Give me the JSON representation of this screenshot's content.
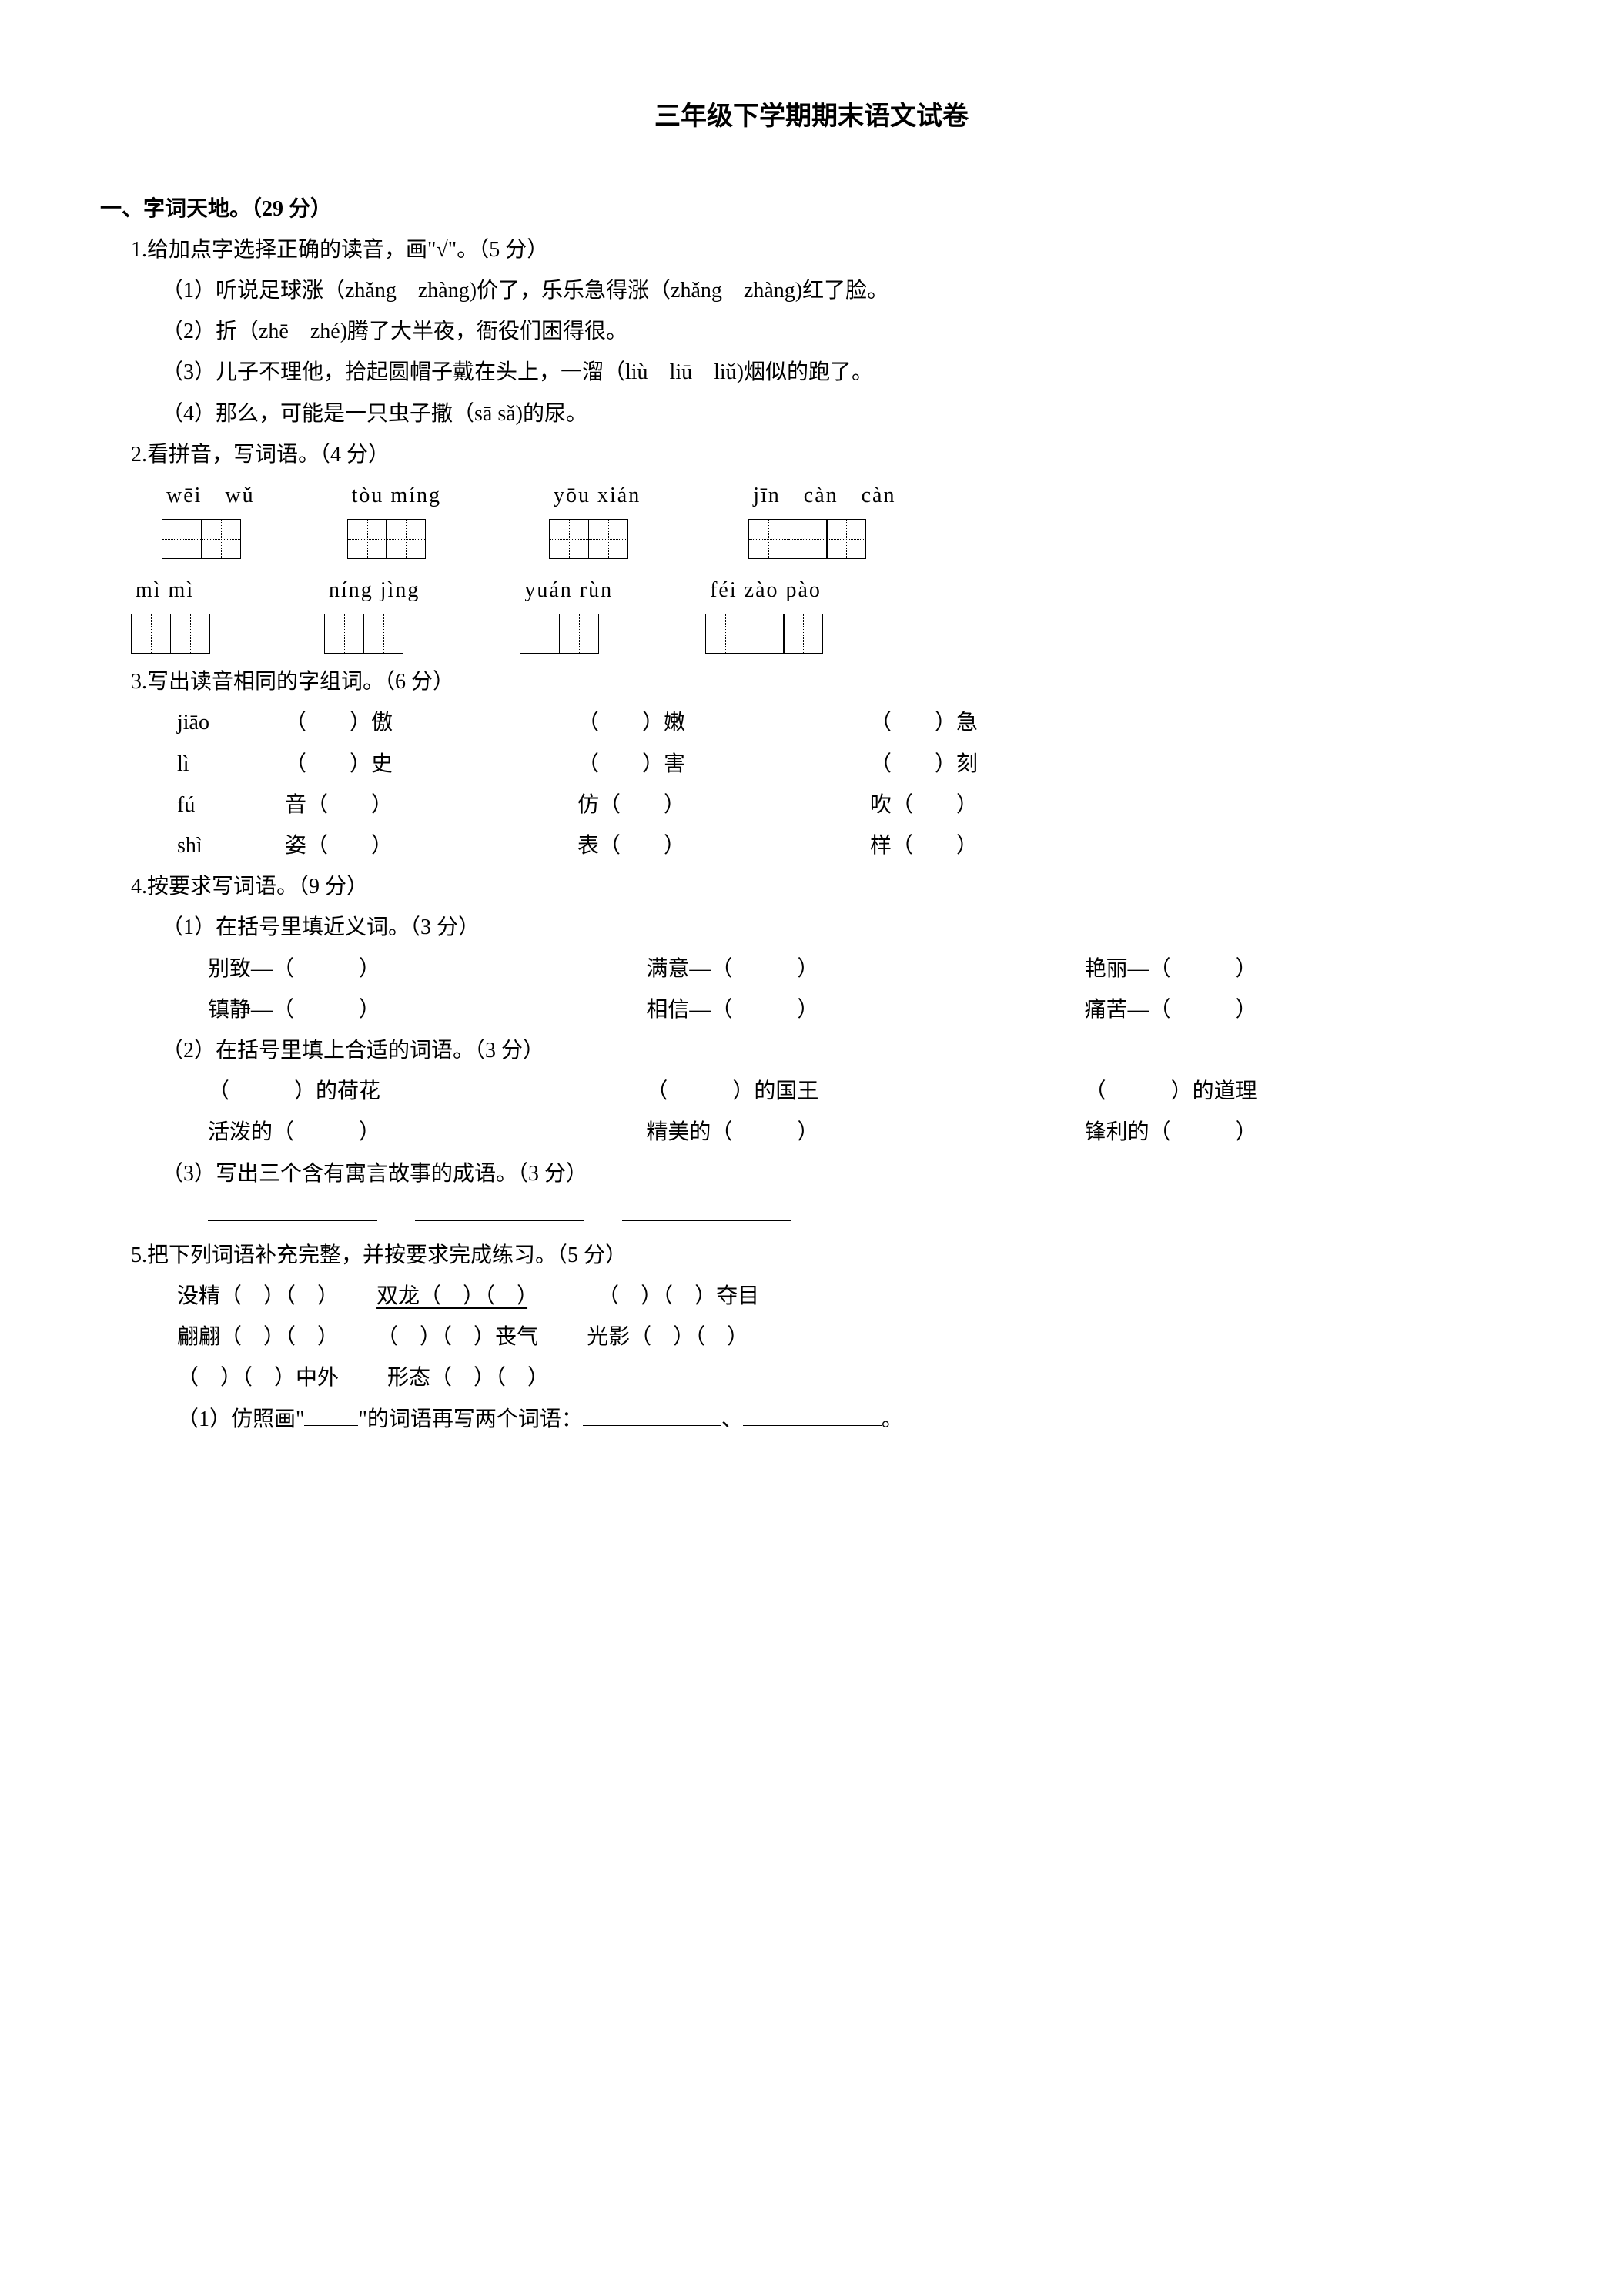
{
  "title": "三年级下学期期末语文试卷",
  "section1": {
    "header": "一、字词天地。（29 分）",
    "q1": {
      "stem": "1.给加点字选择正确的读音，画\"√\"。（5 分）",
      "items": [
        "（1）听说足球涨（zhǎng　zhàng)价了，乐乐急得涨（zhǎng　zhàng)红了脸。",
        "（2）折（zhē　zhé)腾了大半夜，衙役们困得很。",
        "（3）儿子不理他，拾起圆帽子戴在头上，一溜（liù　liū　liǔ)烟似的跑了。",
        "（4）那么，可能是一只虫子撒（sā sǎ)的尿。"
      ]
    },
    "q2": {
      "stem": "2.看拼音，写词语。（4 分）",
      "row1": [
        {
          "pinyin": "wēi　wǔ",
          "cells": 2,
          "gap_after": 120
        },
        {
          "pinyin": "tòu míng",
          "cells": 2,
          "gap_after": 140
        },
        {
          "pinyin": "yōu xián",
          "cells": 2,
          "gap_after": 140
        },
        {
          "pinyin": "jīn　càn　càn",
          "cells": 3,
          "gap_after": 0
        }
      ],
      "row2": [
        {
          "pinyin": "mì mì",
          "cells": 2,
          "gap_after": 150
        },
        {
          "pinyin": "níng jìng",
          "cells": 2,
          "gap_after": 130
        },
        {
          "pinyin": "yuán rùn",
          "cells": 2,
          "gap_after": 120
        },
        {
          "pinyin": "féi zào pào",
          "cells": 3,
          "gap_after": 0
        }
      ]
    },
    "q3": {
      "stem": "3.写出读音相同的字组词。（6 分）",
      "rows": [
        {
          "py": "jiāo",
          "a": "（　　）傲",
          "b": "（　　）嫩",
          "c": "（　　）急"
        },
        {
          "py": "lì",
          "a": "（　　）史",
          "b": "（　　）害",
          "c": "（　　）刻"
        },
        {
          "py": "fú",
          "a": "音（　　）",
          "b": "仿（　　）",
          "c": "吹（　　）"
        },
        {
          "py": "shì",
          "a": "姿（　　）",
          "b": "表（　　）",
          "c": "样（　　）"
        }
      ]
    },
    "q4": {
      "stem": "4.按要求写词语。（9 分）",
      "p1": {
        "stem": "（1）在括号里填近义词。（3 分）",
        "row1": [
          "别致—（　　　）",
          "满意—（　　　）",
          "艳丽—（　　　）"
        ],
        "row2": [
          "镇静—（　　　）",
          "相信—（　　　）",
          "痛苦—（　　　）"
        ]
      },
      "p2": {
        "stem": "（2）在括号里填上合适的词语。（3 分）",
        "row1": [
          "（　　　）的荷花",
          "（　　　）的国王",
          "（　　　）的道理"
        ],
        "row2": [
          "活泼的（　　　）",
          "精美的（　　　）",
          "锋利的（　　　）"
        ]
      },
      "p3": {
        "stem": "（3）写出三个含有寓言故事的成语。（3 分）"
      }
    },
    "q5": {
      "stem": "5.把下列词语补充完整，并按要求完成练习。（5 分）",
      "line1": [
        "没精（　）（　）",
        "双龙（　）（　）",
        "（　）（　）夺目"
      ],
      "line2": [
        "翩翩（　）（　）",
        "（　）（　）丧气",
        "光影（　）（　）"
      ],
      "line3": [
        "（　）（　）中外",
        "形态（　）（　）"
      ],
      "sub1_prefix": "（1）仿照画\"",
      "sub1_suffix": "\"的词语再写两个词语："
    }
  }
}
